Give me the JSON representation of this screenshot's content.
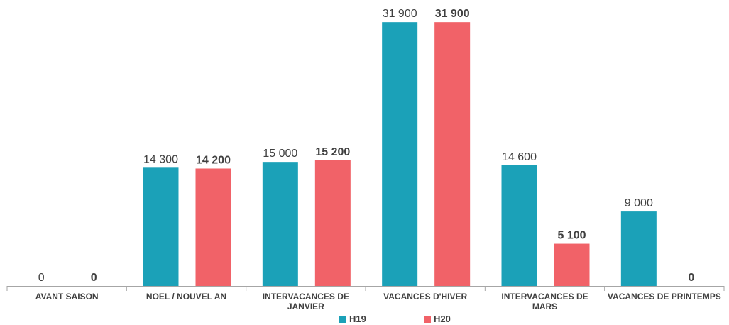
{
  "chart_data": {
    "type": "bar",
    "categories": [
      "AVANT SAISON",
      "NOEL / NOUVEL AN",
      "INTERVACANCES DE JANVIER",
      "VACANCES D'HIVER",
      "INTERVACANCES DE MARS",
      "VACANCES DE PRINTEMPS"
    ],
    "series": [
      {
        "name": "H19",
        "color": "#1ba1b8",
        "values": [
          0,
          14300,
          15000,
          31900,
          14600,
          9000
        ],
        "value_labels": [
          "0",
          "14 300",
          "15 000",
          "31 900",
          "14 600",
          "9 000"
        ]
      },
      {
        "name": "H20",
        "color": "#f16268",
        "values": [
          0,
          14200,
          15200,
          31900,
          5100,
          0
        ],
        "value_labels": [
          "0",
          "14 200",
          "15 200",
          "31 900",
          "5 100",
          "0"
        ]
      }
    ],
    "ylim": [
      0,
      32000
    ]
  }
}
